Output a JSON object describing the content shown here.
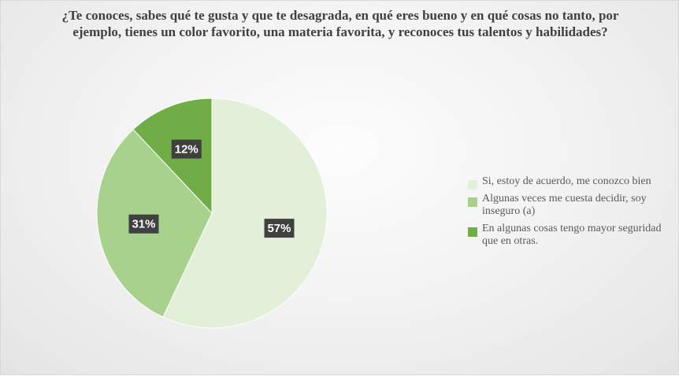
{
  "chart_data": {
    "type": "pie",
    "title": "¿Te conoces, sabes qué te gusta y que te desagrada, en qué eres bueno y en qué cosas no tanto, por ejemplo, tienes un color favorito, una materia favorita, y reconoces tus talentos y habilidades?",
    "slices": [
      {
        "label": "Si, estoy de acuerdo, me conozco bien",
        "value": 57,
        "display": "57%",
        "color": "#e2efd9"
      },
      {
        "label": "Algunas veces me cuesta decidir, soy inseguro (a)",
        "value": 31,
        "display": "31%",
        "color": "#a9d18e"
      },
      {
        "label": "En algunas cosas tengo mayor seguridad que en otras.",
        "value": 12,
        "display": "12%",
        "color": "#70ad47"
      }
    ],
    "legend_position": "right"
  }
}
